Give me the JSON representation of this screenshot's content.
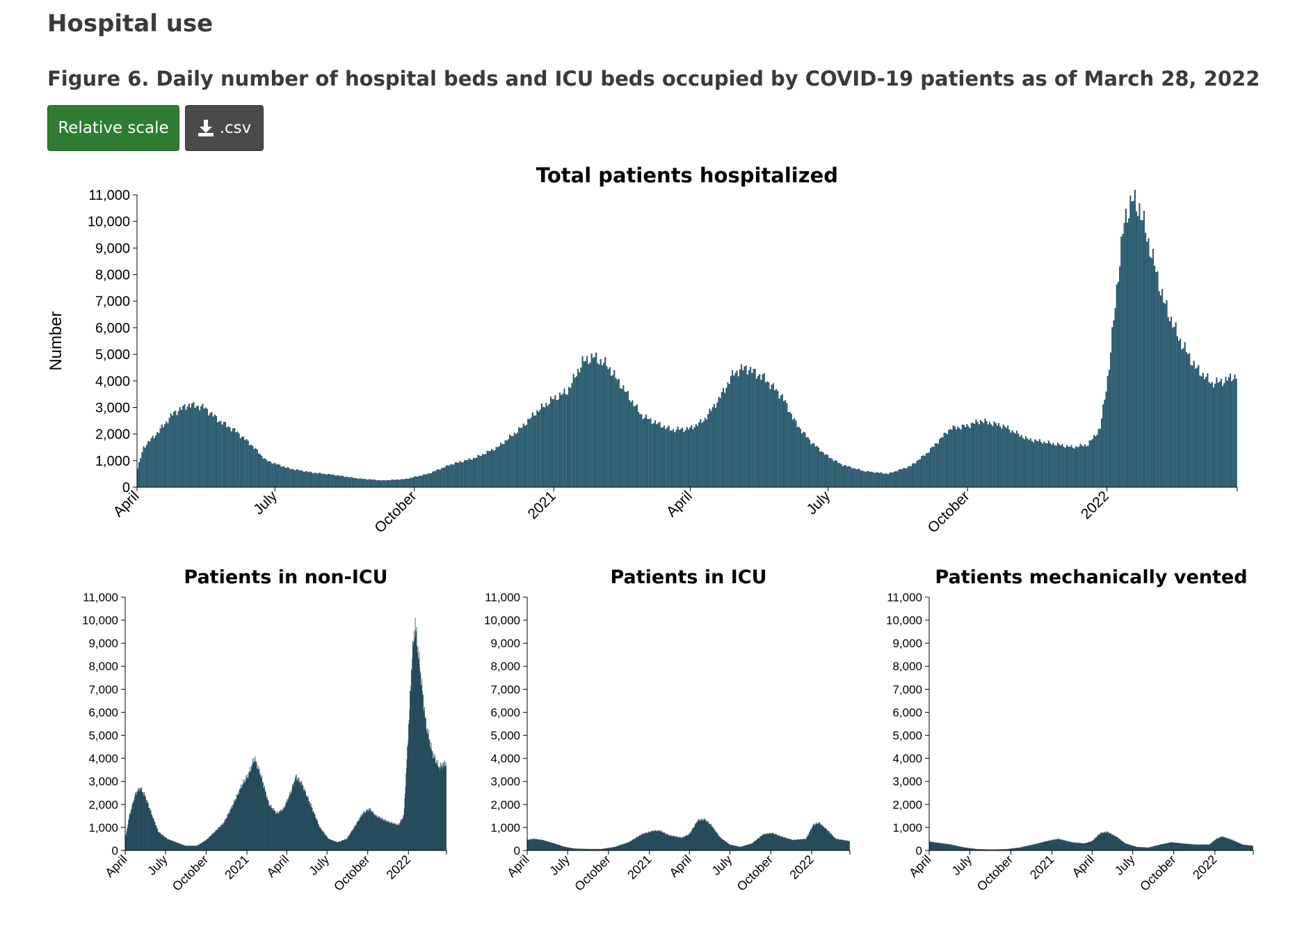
{
  "page": {
    "section_heading": "Hospital use",
    "figure_title": "Figure 6. Daily number of hospital beds and ICU beds occupied by COVID-19 patients as of March 28, 2022",
    "buttons": {
      "relative_scale": "Relative scale",
      "csv": ".csv"
    },
    "icons": {
      "download": "download-icon"
    },
    "colors": {
      "bars": "#1e5a73",
      "relative_scale_button": "#2e7d32",
      "csv_button": "#4a4a4a"
    }
  },
  "chart_data": [
    {
      "type": "bar",
      "title": "Total patients hospitalized",
      "ylabel": "Number",
      "xlabel": "",
      "ylim": [
        0,
        11000
      ],
      "yticks": [
        "0",
        "1,000",
        "2,000",
        "3,000",
        "4,000",
        "5,000",
        "6,000",
        "7,000",
        "8,000",
        "9,000",
        "10,000",
        "11,000"
      ],
      "x_range": [
        "2020-04-01",
        "2022-03-28"
      ],
      "xtick_labels": [
        {
          "date": "2020-04-01",
          "label": "April"
        },
        {
          "date": "2020-07-01",
          "label": "July"
        },
        {
          "date": "2020-10-01",
          "label": "October"
        },
        {
          "date": "2021-01-01",
          "label": "2021"
        },
        {
          "date": "2021-04-01",
          "label": "April"
        },
        {
          "date": "2021-07-01",
          "label": "July"
        },
        {
          "date": "2021-10-01",
          "label": "October"
        },
        {
          "date": "2022-01-01",
          "label": "2022"
        }
      ],
      "points": [
        [
          "2020-04-01",
          700
        ],
        [
          "2020-04-05",
          1500
        ],
        [
          "2020-04-15",
          2100
        ],
        [
          "2020-04-25",
          2800
        ],
        [
          "2020-05-05",
          3100
        ],
        [
          "2020-05-15",
          3000
        ],
        [
          "2020-05-25",
          2500
        ],
        [
          "2020-06-05",
          2100
        ],
        [
          "2020-06-15",
          1600
        ],
        [
          "2020-06-25",
          1000
        ],
        [
          "2020-07-10",
          700
        ],
        [
          "2020-07-25",
          550
        ],
        [
          "2020-08-10",
          450
        ],
        [
          "2020-08-25",
          320
        ],
        [
          "2020-09-10",
          250
        ],
        [
          "2020-09-25",
          300
        ],
        [
          "2020-10-10",
          500
        ],
        [
          "2020-10-25",
          850
        ],
        [
          "2020-11-10",
          1100
        ],
        [
          "2020-11-25",
          1500
        ],
        [
          "2020-12-10",
          2200
        ],
        [
          "2020-12-20",
          2800
        ],
        [
          "2020-12-31",
          3300
        ],
        [
          "2021-01-10",
          3600
        ],
        [
          "2021-01-20",
          4700
        ],
        [
          "2021-01-27",
          4900
        ],
        [
          "2021-02-05",
          4600
        ],
        [
          "2021-02-15",
          3800
        ],
        [
          "2021-02-28",
          2700
        ],
        [
          "2021-03-10",
          2400
        ],
        [
          "2021-03-20",
          2150
        ],
        [
          "2021-04-01",
          2200
        ],
        [
          "2021-04-10",
          2500
        ],
        [
          "2021-04-20",
          3300
        ],
        [
          "2021-04-30",
          4300
        ],
        [
          "2021-05-08",
          4500
        ],
        [
          "2021-05-20",
          4100
        ],
        [
          "2021-06-01",
          3400
        ],
        [
          "2021-06-10",
          2400
        ],
        [
          "2021-06-20",
          1700
        ],
        [
          "2021-06-30",
          1200
        ],
        [
          "2021-07-10",
          850
        ],
        [
          "2021-07-25",
          600
        ],
        [
          "2021-08-10",
          500
        ],
        [
          "2021-08-25",
          800
        ],
        [
          "2021-09-05",
          1300
        ],
        [
          "2021-09-20",
          2200
        ],
        [
          "2021-10-01",
          2300
        ],
        [
          "2021-10-10",
          2500
        ],
        [
          "2021-10-25",
          2300
        ],
        [
          "2021-11-10",
          1800
        ],
        [
          "2021-11-25",
          1650
        ],
        [
          "2021-12-10",
          1500
        ],
        [
          "2021-12-20",
          1600
        ],
        [
          "2021-12-28",
          2200
        ],
        [
          "2022-01-03",
          4500
        ],
        [
          "2022-01-08",
          7500
        ],
        [
          "2022-01-13",
          10000
        ],
        [
          "2022-01-18",
          10800
        ],
        [
          "2022-01-23",
          10500
        ],
        [
          "2022-01-30",
          9000
        ],
        [
          "2022-02-08",
          7000
        ],
        [
          "2022-02-18",
          5600
        ],
        [
          "2022-03-01",
          4500
        ],
        [
          "2022-03-12",
          3900
        ],
        [
          "2022-03-20",
          4000
        ],
        [
          "2022-03-28",
          4200
        ]
      ]
    },
    {
      "type": "bar",
      "title": "Patients in non-ICU",
      "ylim": [
        0,
        11000
      ],
      "yticks": [
        "0",
        "1,000",
        "2,000",
        "3,000",
        "4,000",
        "5,000",
        "6,000",
        "7,000",
        "8,000",
        "9,000",
        "10,000",
        "11,000"
      ],
      "x_range": [
        "2020-04-01",
        "2022-03-28"
      ],
      "xtick_labels": [
        {
          "date": "2020-04-01",
          "label": "April"
        },
        {
          "date": "2020-07-01",
          "label": "July"
        },
        {
          "date": "2020-10-01",
          "label": "October"
        },
        {
          "date": "2021-01-01",
          "label": "2021"
        },
        {
          "date": "2021-04-01",
          "label": "April"
        },
        {
          "date": "2021-07-01",
          "label": "July"
        },
        {
          "date": "2021-10-01",
          "label": "October"
        },
        {
          "date": "2022-01-01",
          "label": "2022"
        }
      ],
      "points": [
        [
          "2020-04-01",
          500
        ],
        [
          "2020-04-10",
          1500
        ],
        [
          "2020-04-25",
          2500
        ],
        [
          "2020-05-05",
          2700
        ],
        [
          "2020-05-15",
          2400
        ],
        [
          "2020-06-01",
          1500
        ],
        [
          "2020-06-15",
          800
        ],
        [
          "2020-07-05",
          500
        ],
        [
          "2020-07-25",
          350
        ],
        [
          "2020-08-15",
          200
        ],
        [
          "2020-09-10",
          200
        ],
        [
          "2020-10-01",
          450
        ],
        [
          "2020-10-20",
          800
        ],
        [
          "2020-11-10",
          1200
        ],
        [
          "2020-12-01",
          2000
        ],
        [
          "2020-12-20",
          2800
        ],
        [
          "2021-01-05",
          3300
        ],
        [
          "2021-01-18",
          4000
        ],
        [
          "2021-02-01",
          3300
        ],
        [
          "2021-02-20",
          2000
        ],
        [
          "2021-03-10",
          1600
        ],
        [
          "2021-03-25",
          1800
        ],
        [
          "2021-04-10",
          2500
        ],
        [
          "2021-04-22",
          3200
        ],
        [
          "2021-05-05",
          2900
        ],
        [
          "2021-05-25",
          2000
        ],
        [
          "2021-06-15",
          1000
        ],
        [
          "2021-07-05",
          500
        ],
        [
          "2021-07-25",
          350
        ],
        [
          "2021-08-15",
          500
        ],
        [
          "2021-09-01",
          1000
        ],
        [
          "2021-09-20",
          1600
        ],
        [
          "2021-10-05",
          1800
        ],
        [
          "2021-10-20",
          1500
        ],
        [
          "2021-11-15",
          1250
        ],
        [
          "2021-12-10",
          1100
        ],
        [
          "2021-12-22",
          1500
        ],
        [
          "2022-01-01",
          5000
        ],
        [
          "2022-01-10",
          8500
        ],
        [
          "2022-01-17",
          9800
        ],
        [
          "2022-01-27",
          8000
        ],
        [
          "2022-02-10",
          5500
        ],
        [
          "2022-02-25",
          4200
        ],
        [
          "2022-03-12",
          3600
        ],
        [
          "2022-03-28",
          3800
        ]
      ]
    },
    {
      "type": "bar",
      "title": "Patients in ICU",
      "ylim": [
        0,
        11000
      ],
      "yticks": [
        "0",
        "1,000",
        "2,000",
        "3,000",
        "4,000",
        "5,000",
        "6,000",
        "7,000",
        "8,000",
        "9,000",
        "10,000",
        "11,000"
      ],
      "x_range": [
        "2020-04-01",
        "2022-03-28"
      ],
      "xtick_labels": [
        {
          "date": "2020-04-01",
          "label": "April"
        },
        {
          "date": "2020-07-01",
          "label": "July"
        },
        {
          "date": "2020-10-01",
          "label": "October"
        },
        {
          "date": "2021-01-01",
          "label": "2021"
        },
        {
          "date": "2021-04-01",
          "label": "April"
        },
        {
          "date": "2021-07-01",
          "label": "July"
        },
        {
          "date": "2021-10-01",
          "label": "October"
        },
        {
          "date": "2022-01-01",
          "label": "2022"
        }
      ],
      "points": [
        [
          "2020-04-01",
          450
        ],
        [
          "2020-04-15",
          500
        ],
        [
          "2020-05-05",
          450
        ],
        [
          "2020-06-01",
          300
        ],
        [
          "2020-06-25",
          150
        ],
        [
          "2020-07-15",
          80
        ],
        [
          "2020-08-15",
          60
        ],
        [
          "2020-09-15",
          60
        ],
        [
          "2020-10-15",
          150
        ],
        [
          "2020-11-15",
          350
        ],
        [
          "2020-12-15",
          700
        ],
        [
          "2021-01-10",
          850
        ],
        [
          "2021-01-25",
          850
        ],
        [
          "2021-02-15",
          650
        ],
        [
          "2021-03-15",
          550
        ],
        [
          "2021-04-01",
          700
        ],
        [
          "2021-04-20",
          1300
        ],
        [
          "2021-05-05",
          1350
        ],
        [
          "2021-05-20",
          1100
        ],
        [
          "2021-06-10",
          550
        ],
        [
          "2021-07-01",
          250
        ],
        [
          "2021-07-25",
          150
        ],
        [
          "2021-08-20",
          300
        ],
        [
          "2021-09-15",
          700
        ],
        [
          "2021-10-05",
          750
        ],
        [
          "2021-10-25",
          600
        ],
        [
          "2021-11-20",
          450
        ],
        [
          "2021-12-20",
          500
        ],
        [
          "2022-01-05",
          1100
        ],
        [
          "2022-01-18",
          1200
        ],
        [
          "2022-02-05",
          900
        ],
        [
          "2022-02-25",
          500
        ],
        [
          "2022-03-28",
          400
        ]
      ]
    },
    {
      "type": "bar",
      "title": "Patients mechanically vented",
      "ylim": [
        0,
        11000
      ],
      "yticks": [
        "0",
        "1,000",
        "2,000",
        "3,000",
        "4,000",
        "5,000",
        "6,000",
        "7,000",
        "8,000",
        "9,000",
        "10,000",
        "11,000"
      ],
      "x_range": [
        "2020-04-01",
        "2022-03-28"
      ],
      "xtick_labels": [
        {
          "date": "2020-04-01",
          "label": "April"
        },
        {
          "date": "2020-07-01",
          "label": "July"
        },
        {
          "date": "2020-10-01",
          "label": "October"
        },
        {
          "date": "2021-01-01",
          "label": "2021"
        },
        {
          "date": "2021-04-01",
          "label": "April"
        },
        {
          "date": "2021-07-01",
          "label": "July"
        },
        {
          "date": "2021-10-01",
          "label": "October"
        },
        {
          "date": "2022-01-01",
          "label": "2022"
        }
      ],
      "points": [
        [
          "2020-04-01",
          380
        ],
        [
          "2020-04-20",
          330
        ],
        [
          "2020-05-20",
          250
        ],
        [
          "2020-06-20",
          120
        ],
        [
          "2020-07-20",
          50
        ],
        [
          "2020-08-20",
          40
        ],
        [
          "2020-09-20",
          50
        ],
        [
          "2020-10-20",
          120
        ],
        [
          "2020-11-20",
          250
        ],
        [
          "2020-12-20",
          400
        ],
        [
          "2021-01-15",
          500
        ],
        [
          "2021-02-15",
          350
        ],
        [
          "2021-03-15",
          300
        ],
        [
          "2021-04-01",
          400
        ],
        [
          "2021-04-20",
          750
        ],
        [
          "2021-05-05",
          800
        ],
        [
          "2021-05-25",
          600
        ],
        [
          "2021-06-15",
          300
        ],
        [
          "2021-07-10",
          150
        ],
        [
          "2021-08-05",
          120
        ],
        [
          "2021-09-01",
          250
        ],
        [
          "2021-09-25",
          350
        ],
        [
          "2021-10-20",
          300
        ],
        [
          "2021-11-20",
          250
        ],
        [
          "2021-12-20",
          250
        ],
        [
          "2022-01-05",
          500
        ],
        [
          "2022-01-18",
          600
        ],
        [
          "2022-02-10",
          450
        ],
        [
          "2022-03-05",
          250
        ],
        [
          "2022-03-28",
          200
        ]
      ]
    }
  ]
}
